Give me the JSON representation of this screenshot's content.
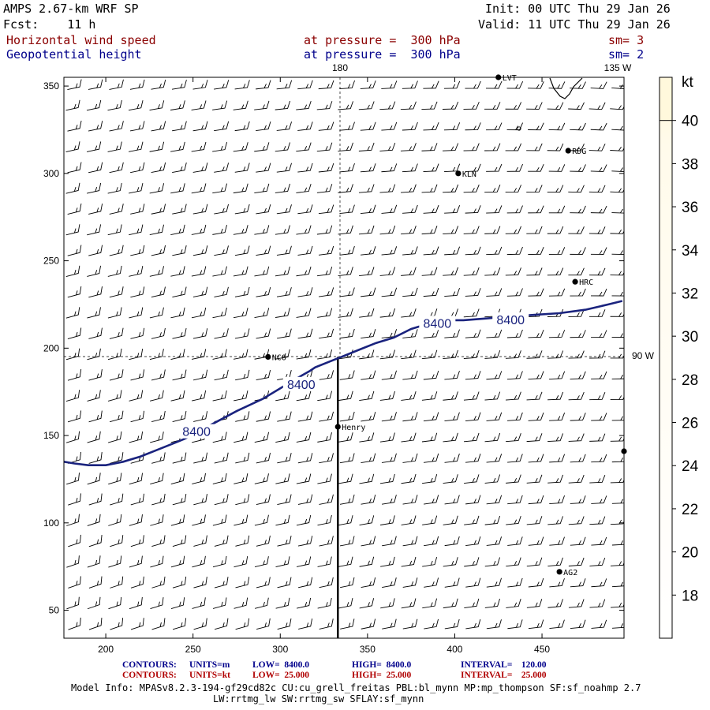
{
  "header": {
    "model": "AMPS 2.67-km WRF SP",
    "fcst": "Fcst:    11 h",
    "init": "Init: 00 UTC Thu 29 Jan 26",
    "valid": "Valid: 11 UTC Thu 29 Jan 26",
    "field1": "Horizontal wind speed",
    "field1_level": "at pressure =  300 hPa",
    "field1_sm": "sm= 3",
    "field2": "Geopotential height",
    "field2_level": "at pressure =  300 hPa",
    "field2_sm": "sm= 2"
  },
  "map_labels": {
    "lon_180": "180",
    "lon_135w": "135 W",
    "lon_90w": "90 W"
  },
  "stations": [
    {
      "name": "LVT",
      "x": 425,
      "y": 355
    },
    {
      "name": "RDG",
      "x": 465,
      "y": 313
    },
    {
      "name": "KLN",
      "x": 402,
      "y": 300
    },
    {
      "name": "HRC",
      "x": 469,
      "y": 238
    },
    {
      "name": "NCO",
      "x": 293,
      "y": 195
    },
    {
      "name": "Henry",
      "x": 333,
      "y": 155
    },
    {
      "name": "AG2",
      "x": 460,
      "y": 72
    },
    {
      "name": "",
      "x": 497,
      "y": 141
    }
  ],
  "chart_data": {
    "type": "contour",
    "x_ticks": [
      200,
      250,
      300,
      350,
      400,
      450
    ],
    "y_ticks": [
      50,
      100,
      150,
      200,
      250,
      300,
      350
    ],
    "xlim": [
      176,
      497
    ],
    "ylim": [
      34,
      355
    ],
    "contour_lines": [
      {
        "label": "8400",
        "points": [
          [
            176,
            135
          ],
          [
            182,
            134
          ],
          [
            190,
            133
          ],
          [
            200,
            133
          ],
          [
            210,
            135
          ],
          [
            220,
            138
          ],
          [
            230,
            142
          ],
          [
            240,
            146
          ],
          [
            245,
            148
          ],
          [
            260,
            156
          ],
          [
            275,
            164
          ],
          [
            290,
            171
          ],
          [
            305,
            180
          ],
          [
            310,
            183
          ],
          [
            317,
            187
          ],
          [
            320,
            189
          ],
          [
            330,
            193
          ],
          [
            335,
            195
          ],
          [
            345,
            199
          ],
          [
            355,
            203
          ],
          [
            365,
            206
          ],
          [
            375,
            211
          ],
          [
            385,
            214
          ],
          [
            395,
            216
          ],
          [
            405,
            216
          ],
          [
            418,
            217
          ],
          [
            430,
            218
          ],
          [
            445,
            219
          ],
          [
            460,
            220
          ],
          [
            475,
            222
          ],
          [
            488,
            225
          ],
          [
            496,
            227
          ]
        ]
      }
    ],
    "contour_labels": [
      {
        "text": "8400",
        "x": 252,
        "y": 152
      },
      {
        "text": "8400",
        "x": 312,
        "y": 179
      },
      {
        "text": "8400",
        "x": 390,
        "y": 214
      },
      {
        "text": "8400",
        "x": 432,
        "y": 216
      }
    ],
    "wind_barbs": "uniform field, westerly ~25 kt",
    "colorbar": {
      "title": "kt",
      "ticks": [
        18,
        20,
        22,
        24,
        26,
        28,
        30,
        32,
        34,
        36,
        38,
        40
      ],
      "range": [
        16,
        42
      ],
      "colors": [
        "#ffffff",
        "#fff8dc"
      ]
    },
    "cross_section_line": {
      "x": 333,
      "y_from": 34,
      "y_to": 195
    }
  },
  "footer": {
    "c1_label": "CONTOURS:",
    "c1_units": "UNITS=m",
    "c1_low": "LOW=  8400.0",
    "c1_high": "HIGH=  8400.0",
    "c1_int": "INTERVAL=    120.00",
    "c2_label": "CONTOURS:",
    "c2_units": "UNITS=kt",
    "c2_low": "LOW=  25.000",
    "c2_high": "HIGH=  25.000",
    "c2_int": "INTERVAL=    25.000",
    "model_info": "Model Info: MPASv8.2.3-194-gf29cd82c CU:cu_grell_freitas PBL:bl_mynn MP:mp_thompson SF:sf_noahmp 2.7",
    "model_info2": "LW:rrtmg_lw SW:rrtmg_sw SFLAY:sf_mynn"
  }
}
